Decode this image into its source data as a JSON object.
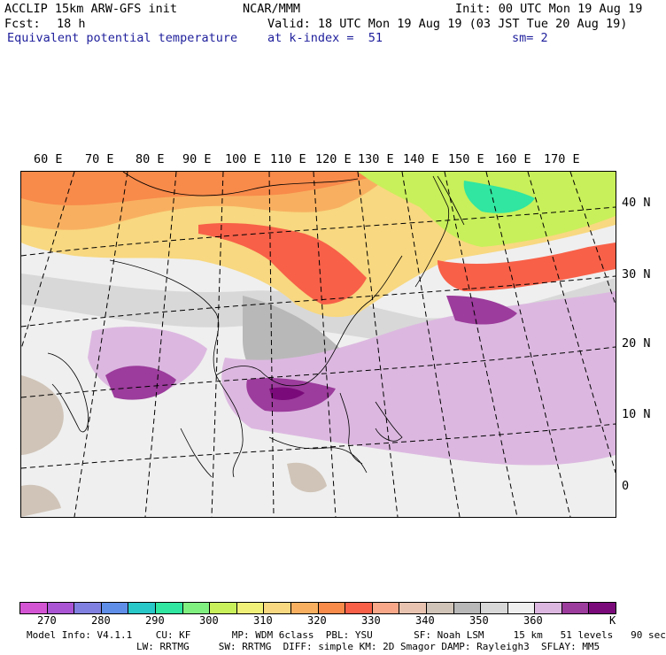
{
  "header": {
    "model": "ACCLIP 15km ARW-GFS init",
    "org": "NCAR/MMM",
    "init": "Init: 00 UTC Mon 19 Aug 19",
    "fcst_label": "Fcst:",
    "fcst_value": "18 h",
    "valid": "Valid: 18 UTC Mon 19 Aug 19 (03 JST Tue 20 Aug 19)",
    "field": "Equivalent potential temperature",
    "level": "at k-index =  51",
    "smoothing": "sm= 2"
  },
  "map": {
    "lon_labels": [
      "60 E",
      "70 E",
      "80 E",
      "90 E",
      "100 E",
      "110 E",
      "120 E",
      "130 E",
      "140 E",
      "150 E",
      "160 E",
      "170 E"
    ],
    "lat_labels": [
      "40 N",
      "30 N",
      "20 N",
      "10 N",
      "0"
    ]
  },
  "colorbar": {
    "colors": [
      "#d455d4",
      "#a955d4",
      "#8080e0",
      "#5f8ee8",
      "#28c8c8",
      "#30e6a0",
      "#80f080",
      "#c8f05a",
      "#f0f078",
      "#f8d880",
      "#f8b060",
      "#f88a4a",
      "#f86048",
      "#f8a888",
      "#e8c4b0",
      "#d0c4b8",
      "#b8b8b8",
      "#d8d8d8",
      "#efefef",
      "#dcb8e0",
      "#9c3c9c",
      "#7a0a7a"
    ],
    "labels": [
      "270",
      "280",
      "290",
      "300",
      "310",
      "320",
      "330",
      "340",
      "350",
      "360",
      "K"
    ]
  },
  "model_info": {
    "line1": "Model Info: V4.1.1    CU: KF       MP: WDM 6class  PBL: YSU       SF: Noah LSM     15 km   51 levels   90 sec",
    "line2": "LW: RRTMG     SW: RRTMG  DIFF: simple KM: 2D Smagor DAMP: Rayleigh3  SFLAY: MM5"
  }
}
